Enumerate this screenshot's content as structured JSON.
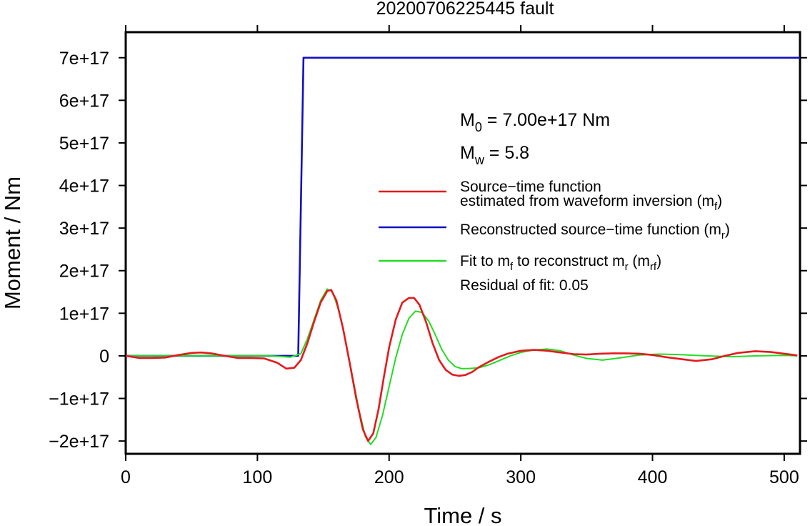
{
  "chart_data": {
    "type": "line",
    "title": "20200706225445 fault",
    "xlabel": "Time / s",
    "ylabel": "Moment / Nm",
    "xlim": [
      0,
      512
    ],
    "ylim": [
      -2.3e+17,
      7.6e+17
    ],
    "x_ticks": [
      0,
      100,
      200,
      300,
      400,
      500
    ],
    "x_tick_labels": [
      "0",
      "100",
      "200",
      "300",
      "400",
      "500"
    ],
    "y_ticks": [
      -2e+17,
      -1e+17,
      0,
      1e+17,
      2e+17,
      3e+17,
      4e+17,
      5e+17,
      6e+17,
      7e+17
    ],
    "y_tick_labels": [
      "−2e+17",
      "−1e+17",
      "0",
      "1e+17",
      "2e+17",
      "3e+17",
      "4e+17",
      "5e+17",
      "6e+17",
      "7e+17"
    ],
    "grid": false,
    "legend_position": "right",
    "annotations": {
      "m0": {
        "base": "M",
        "sub": "0",
        "rest": " = 7.00e+17 Nm"
      },
      "mw": {
        "base": "M",
        "sub": "w",
        "rest": " = 5.8"
      },
      "residual": "Residual of fit: 0.05"
    },
    "legend": [
      {
        "color": "#e41a1c",
        "lines": [
          "Source−time function",
          "estimated from waveform inversion (m",
          "f",
          ")"
        ]
      },
      {
        "color": "#1010c0",
        "lines": [
          "Reconstructed source−time function (m",
          "r",
          ")"
        ]
      },
      {
        "color": "#22dd22",
        "lines": [
          "Fit to m",
          "f",
          " to reconstruct m",
          "r",
          " (m",
          "rf",
          ")"
        ]
      }
    ],
    "series": [
      {
        "color": "#1010c0",
        "x": [
          0,
          131,
          135,
          512
        ],
        "y": [
          0,
          0,
          7e+17,
          7e+17
        ]
      },
      {
        "color": "#e41a1c",
        "x": [
          0,
          10,
          20,
          30,
          40,
          50,
          57,
          65,
          75,
          85,
          95,
          105,
          115,
          122,
          128,
          133,
          138,
          143,
          148,
          153,
          156,
          160,
          165,
          170,
          175,
          180,
          184,
          188,
          192,
          196,
          200,
          205,
          210,
          215,
          219,
          223,
          228,
          233,
          238,
          243,
          248,
          253,
          258,
          263,
          268,
          275,
          283,
          290,
          300,
          310,
          320,
          330,
          340,
          350,
          360,
          370,
          380,
          390,
          400,
          410,
          420,
          433,
          445,
          455,
          465,
          478,
          490,
          500,
          510
        ],
        "y": [
          0,
          -5000000000000000.0,
          -5000000000000000.0,
          -4000000000000000.0,
          2000000000000000.0,
          7000000000000000.0,
          8000000000000000.0,
          6000000000000000.0,
          0.0,
          -5000000000000000.0,
          -5000000000000000.0,
          -6000000000000000.0,
          -1.6e+16,
          -3e+16,
          -2.8e+16,
          -1e+16,
          3e+16,
          8e+16,
          1.25e+17,
          1.52e+17,
          1.55e+17,
          1.3e+17,
          6.5e+16,
          -1.5e+16,
          -1e+17,
          -1.72e+17,
          -2e+17,
          -1.82e+17,
          -1.25e+17,
          -5e+16,
          2e+16,
          8.5e+16,
          1.25e+17,
          1.36e+17,
          1.36e+17,
          1.2e+17,
          8e+16,
          3e+16,
          -1e+16,
          -3.3e+16,
          -4.4e+16,
          -4.7e+16,
          -4.5e+16,
          -3.8e+16,
          -2.7e+16,
          -1.5e+16,
          -3000000000000000.0,
          5000000000000000.0,
          1.2e+16,
          1.4e+16,
          1.2e+16,
          8000000000000000.0,
          4000000000000000.0,
          3000000000000000.0,
          5000000000000000.0,
          6000000000000000.0,
          6000000000000000.0,
          5000000000000000.0,
          2000000000000000.0,
          -3000000000000000.0,
          -7000000000000000.0,
          -1.2e+16,
          -8000000000000000.0,
          0.0,
          7000000000000000.0,
          1.1e+16,
          9000000000000000.0,
          5000000000000000.0,
          1000000000000000.0
        ]
      },
      {
        "color": "#22dd22",
        "x": [
          0,
          60,
          110,
          125,
          133,
          138,
          143,
          148,
          153,
          157,
          162,
          167,
          172,
          177,
          182,
          186,
          190,
          195,
          200,
          205,
          210,
          215,
          220,
          225,
          230,
          235,
          240,
          245,
          250,
          255,
          260,
          268,
          275,
          283,
          292,
          300,
          310,
          320,
          330,
          340,
          350,
          362,
          375,
          390,
          405,
          420,
          440,
          460,
          480,
          500,
          510
        ],
        "y": [
          0,
          0,
          0,
          -3000000000000000.0,
          5000000000000000.0,
          4e+16,
          8.5e+16,
          1.3e+17,
          1.57e+17,
          1.5e+17,
          1.05e+17,
          3.5e+16,
          -4.5e+16,
          -1.25e+17,
          -1.9e+17,
          -2.08e+17,
          -1.92e+17,
          -1.4e+17,
          -7.2e+16,
          -5000000000000000.0,
          5e+16,
          8.8e+16,
          1.05e+17,
          1.02e+17,
          8.2e+16,
          5e+16,
          1.5e+16,
          -1e+16,
          -2.5e+16,
          -3e+16,
          -3e+16,
          -2.8e+16,
          -2.2e+16,
          -1.2e+16,
          0.0,
          8000000000000000.0,
          1.4e+16,
          1.6e+16,
          1.2e+16,
          2000000000000000.0,
          -6000000000000000.0,
          -1e+16,
          -5000000000000000.0,
          2000000000000000.0,
          4000000000000000.0,
          3000000000000000.0,
          0.0,
          -2000000000000000.0,
          0.0,
          1000000000000000.0,
          0.0
        ]
      }
    ]
  }
}
